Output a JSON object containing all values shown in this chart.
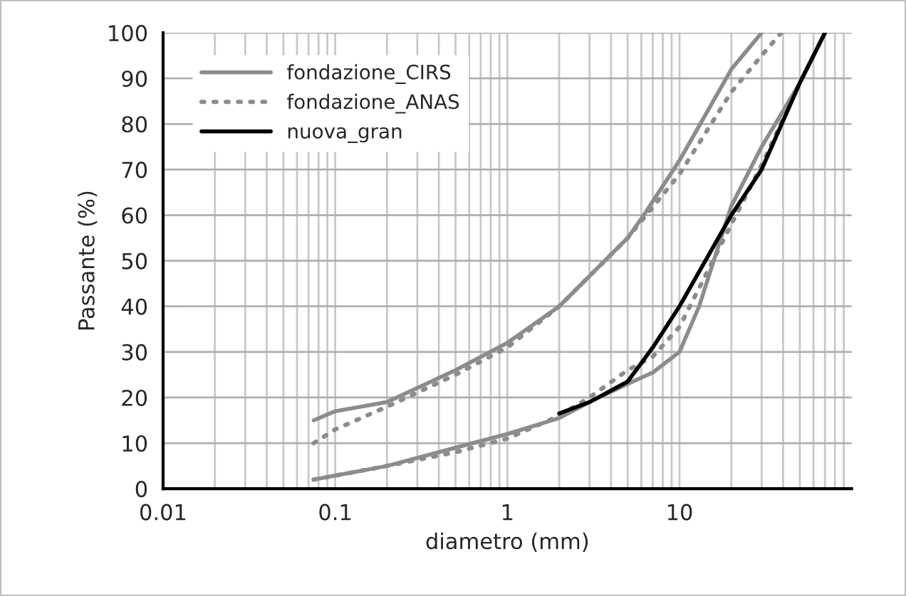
{
  "chart_data": {
    "type": "line",
    "xlabel": "diametro (mm)",
    "ylabel": "Passante (%)",
    "xlim": [
      0.01,
      100
    ],
    "xticks": [
      0.01,
      0.1,
      1,
      10
    ],
    "ylim": [
      0,
      100
    ],
    "yticks": [
      0,
      10,
      20,
      30,
      40,
      50,
      60,
      70,
      80,
      90,
      100
    ],
    "log": "x",
    "grid": true,
    "legend": "top left",
    "marker": "none",
    "series": [
      {
        "name": "fondazione_CIRS",
        "color": "#8c8c8c",
        "line_style": "solid",
        "x": [
          0.075,
          0.1,
          0.2,
          0.5,
          1,
          2,
          5,
          6.2,
          10,
          20,
          30
        ],
        "values": [
          15,
          17,
          19,
          26,
          32,
          40,
          55,
          60,
          72,
          92,
          100
        ]
      },
      {
        "color": "#8c8c8c",
        "line_style": "solid",
        "x": [
          0.075,
          0.2,
          0.5,
          1,
          2,
          3,
          5,
          7,
          10,
          13,
          20,
          30,
          50,
          70
        ],
        "values": [
          2,
          5,
          9,
          12,
          15.5,
          19,
          23,
          25.5,
          30,
          40,
          62,
          75,
          89,
          100
        ]
      },
      {
        "name": "fondazione_ANAS",
        "color": "#8c8c8c",
        "line_style": "dotted",
        "x": [
          0.075,
          0.1,
          0.2,
          0.5,
          1,
          2,
          5,
          10,
          20,
          30,
          39
        ],
        "values": [
          10,
          13,
          18,
          25,
          31,
          40,
          55,
          69,
          87,
          95,
          100
        ]
      },
      {
        "color": "#8c8c8c",
        "line_style": "dotted",
        "x": [
          0.075,
          0.2,
          0.5,
          1,
          2,
          3,
          5,
          7,
          10,
          20,
          30,
          50,
          70
        ],
        "values": [
          2,
          5,
          8,
          11,
          16,
          20,
          26,
          29,
          35.5,
          58,
          71,
          89,
          100
        ]
      },
      {
        "name": "nuova_gran",
        "color": "#000000",
        "line_style": "solid",
        "x": [
          2,
          3,
          5,
          7,
          10,
          20,
          30,
          50,
          70
        ],
        "values": [
          16.5,
          19,
          23.5,
          31,
          40,
          60,
          70,
          89,
          100
        ]
      }
    ]
  }
}
